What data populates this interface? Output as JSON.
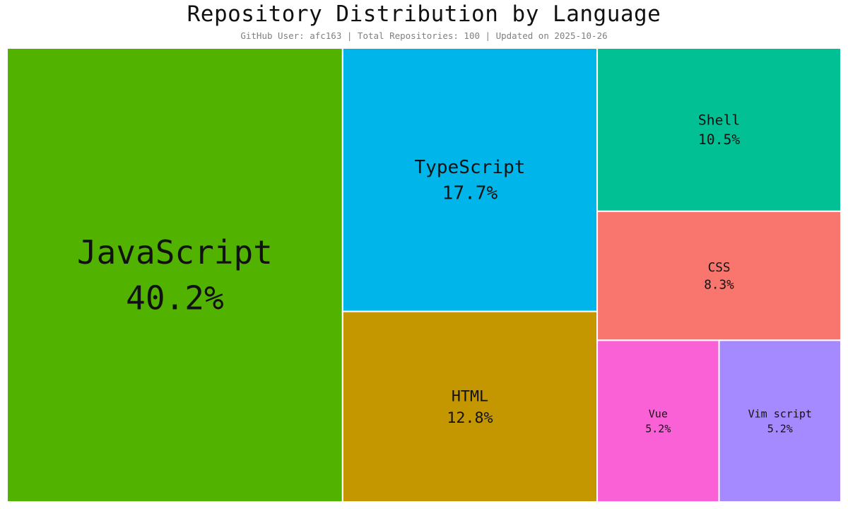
{
  "title": "Repository Distribution by Language",
  "subtitle": "GitHub User: afc163 | Total Repositories: 100 | Updated on 2025-10-26",
  "chart_data": {
    "type": "treemap",
    "title": "Repository Distribution by Language",
    "subtitle": "GitHub User: afc163 | Total Repositories: 100 | Updated on 2025-10-26",
    "items": [
      {
        "name": "JavaScript",
        "value": 40.2,
        "label": "40.2%",
        "color": "#52b200"
      },
      {
        "name": "TypeScript",
        "value": 17.7,
        "label": "17.7%",
        "color": "#00b5ea"
      },
      {
        "name": "HTML",
        "value": 12.8,
        "label": "12.8%",
        "color": "#c49600"
      },
      {
        "name": "Shell",
        "value": 10.5,
        "label": "10.5%",
        "color": "#00c094"
      },
      {
        "name": "CSS",
        "value": 8.3,
        "label": "8.3%",
        "color": "#f8766d"
      },
      {
        "name": "Vue",
        "value": 5.2,
        "label": "5.2%",
        "color": "#fb61d7"
      },
      {
        "name": "Vim script",
        "value": 5.2,
        "label": "5.2%",
        "color": "#a58aff"
      }
    ]
  }
}
